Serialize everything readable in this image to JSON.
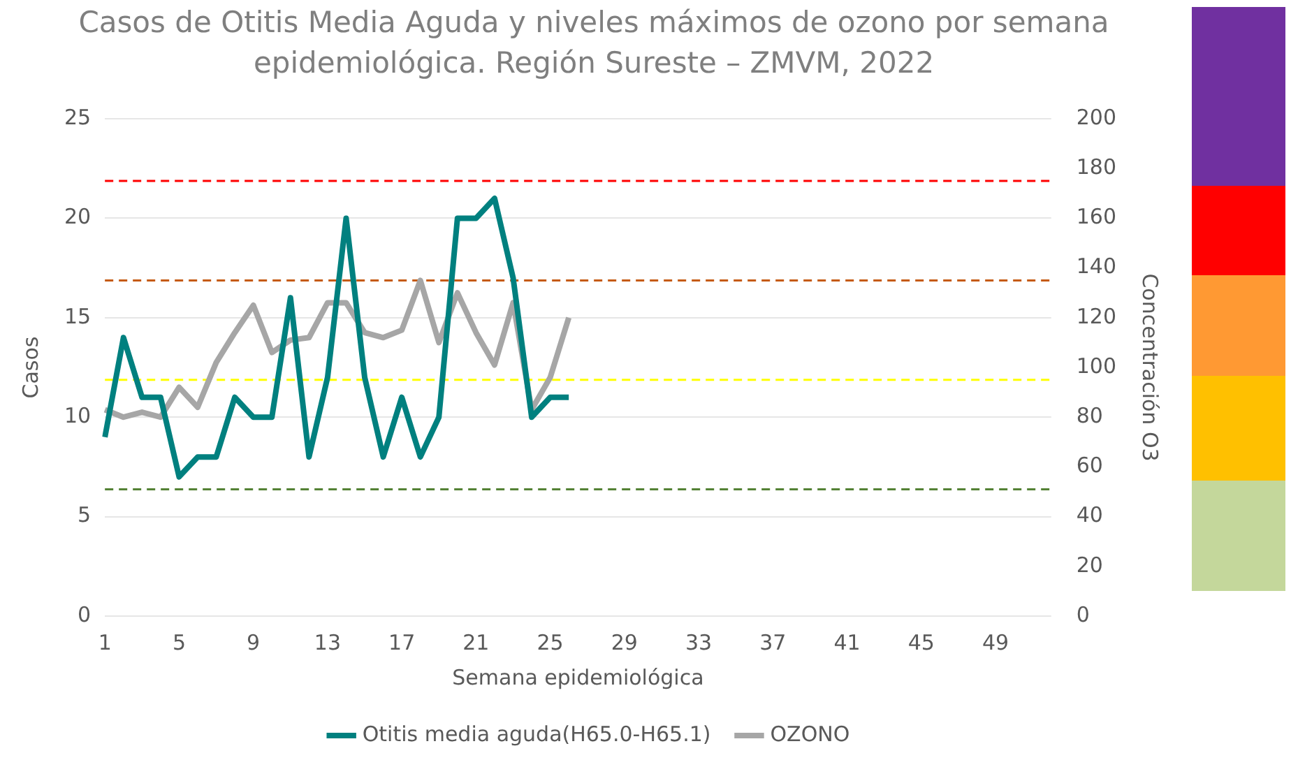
{
  "chart_data": {
    "type": "line",
    "title": "Casos de Otitis Media Aguda y niveles máximos de ozono por semana epidemiológica. Región Sureste – ZMVM, 2022",
    "xlabel": "Semana epidemiológica",
    "ylabel": "Casos",
    "y2label": "Concentración O3",
    "categories": [
      "1",
      null,
      null,
      null,
      "5",
      null,
      null,
      null,
      "9",
      null,
      null,
      null,
      "13",
      null,
      null,
      null,
      "17",
      null,
      null,
      null,
      "21",
      null,
      null,
      null,
      "25",
      null,
      null,
      null,
      "29",
      null,
      null,
      null,
      "33",
      null,
      null,
      null,
      "37",
      null,
      null,
      null,
      "41",
      null,
      null,
      null,
      "45",
      null,
      null,
      null,
      "49",
      null,
      null,
      null
    ],
    "series": [
      {
        "name": "Otitis media aguda(H65.0-H65.1)",
        "color": "#00807f",
        "values": [
          9,
          14,
          11,
          11,
          7,
          8,
          8,
          11,
          10,
          10,
          16,
          8,
          12,
          20,
          12,
          8,
          11,
          8,
          10,
          20,
          20,
          21,
          17,
          10,
          11,
          11,
          null,
          null,
          null,
          null,
          null,
          null,
          null,
          null,
          null,
          null,
          null,
          null,
          null,
          null,
          null,
          null,
          null,
          null,
          null,
          null,
          null,
          null,
          null,
          null,
          null,
          null
        ]
      },
      {
        "name": "OZONO",
        "color": "#a6a6a6",
        "axis": "y2",
        "values": [
          83,
          80,
          82,
          80,
          92,
          84,
          102,
          114,
          125,
          106,
          111,
          112,
          126,
          126,
          114,
          112,
          115,
          135,
          110,
          130,
          114,
          101,
          126,
          83,
          96,
          120,
          null,
          null,
          null,
          null,
          null,
          null,
          null,
          null,
          null,
          null,
          null,
          null,
          null,
          null,
          null,
          null,
          null,
          null,
          null,
          null,
          null,
          null,
          null,
          null,
          null,
          null
        ]
      }
    ],
    "ylim": [
      0,
      25
    ],
    "yticks": [
      0,
      5,
      10,
      15,
      20,
      25
    ],
    "y2lim": [
      0,
      200
    ],
    "y2ticks": [
      0,
      20,
      40,
      60,
      80,
      100,
      120,
      140,
      160,
      180,
      200
    ],
    "ref_lines": [
      {
        "axis": "y2",
        "value": 175,
        "color": "#ff0000",
        "line_style": "dashed"
      },
      {
        "axis": "y2",
        "value": 135,
        "color": "#c55a11",
        "line_style": "dashed"
      },
      {
        "axis": "y2",
        "value": 95,
        "color": "#ffff00",
        "line_style": "dashed"
      },
      {
        "axis": "y2",
        "value": 51,
        "color": "#548235",
        "line_style": "dashed"
      }
    ],
    "grid": "y",
    "legend": "bottom",
    "marker": "none",
    "line_style": "solid"
  }
}
